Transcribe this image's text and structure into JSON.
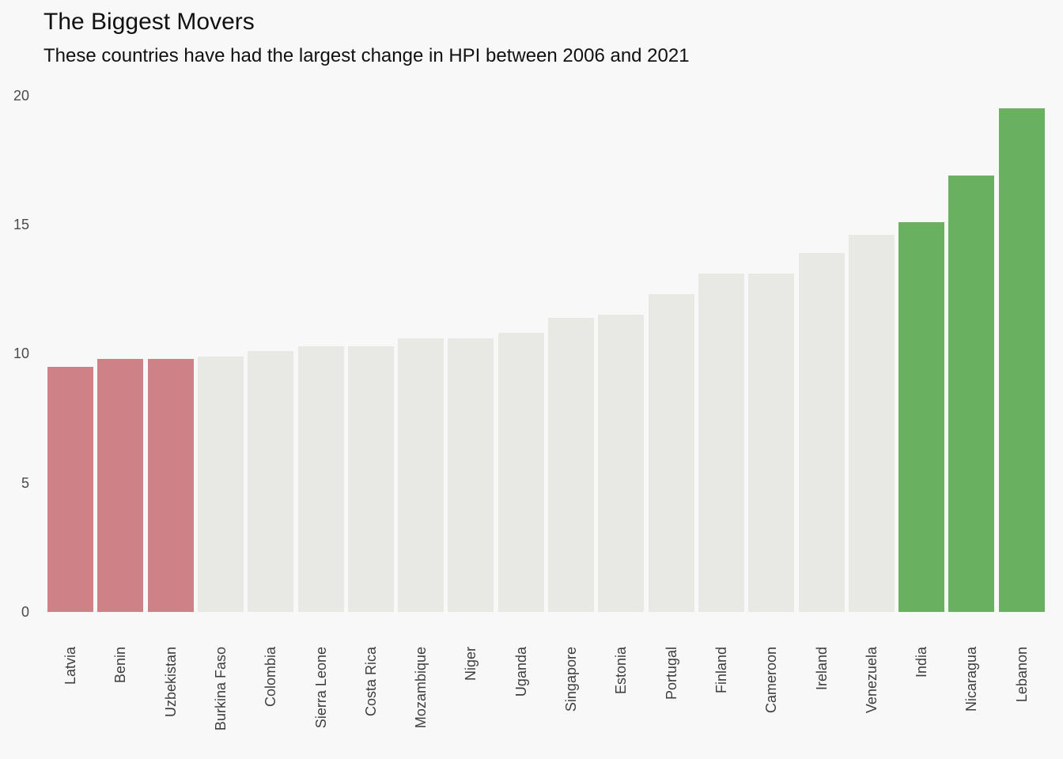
{
  "chart_data": {
    "type": "bar",
    "title": "The Biggest Movers",
    "subtitle": "These countries have had the largest change in HPI between 2006 and 2021",
    "xlabel": "",
    "ylabel": "",
    "categories": [
      "Latvia",
      "Benin",
      "Uzbekistan",
      "Burkina Faso",
      "Colombia",
      "Sierra Leone",
      "Costa Rica",
      "Mozambique",
      "Niger",
      "Uganda",
      "Singapore",
      "Estonia",
      "Portugal",
      "Finland",
      "Cameroon",
      "Ireland",
      "Venezuela",
      "India",
      "Nicaragua",
      "Lebanon"
    ],
    "values": [
      9.5,
      9.8,
      9.8,
      9.9,
      10.1,
      10.3,
      10.3,
      10.6,
      10.6,
      10.8,
      11.4,
      11.5,
      12.3,
      13.1,
      13.1,
      13.9,
      14.6,
      15.1,
      16.9,
      19.5
    ],
    "bar_colors": [
      "#ce8187",
      "#ce8187",
      "#ce8187",
      "#e8e8e5",
      "#e8e8e5",
      "#e8e8e5",
      "#e8e8e5",
      "#e8e8e5",
      "#e8e8e5",
      "#e8e8e5",
      "#e8e8e5",
      "#e8e8e5",
      "#e8e8e5",
      "#e8e8e5",
      "#e8e8e5",
      "#e8e8e5",
      "#e8e8e5",
      "#6ab061",
      "#6ab061",
      "#6ab061"
    ],
    "palette": {
      "highlight_red": "#ce8187",
      "neutral_gray": "#e8e8e5",
      "highlight_green": "#6ab061",
      "background": "#f8f8f8"
    },
    "yticks": [
      0,
      5,
      10,
      15,
      20
    ],
    "ytick_labels": [
      "0",
      "5",
      "10",
      "15",
      "20"
    ],
    "ylim": [
      0,
      20
    ],
    "grid": false,
    "legend": null,
    "x_label_rotation_degrees": 90
  }
}
